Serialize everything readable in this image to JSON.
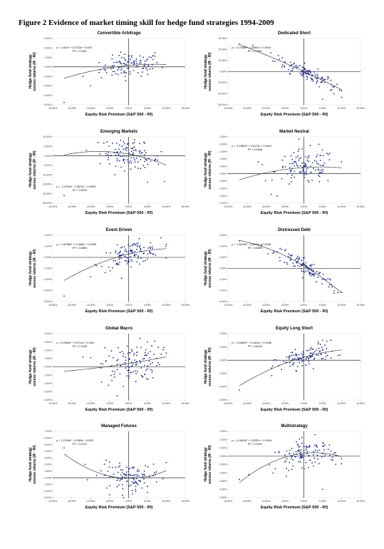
{
  "figure": {
    "title": "Figure 2 Evidence of market timing skill for hedge fund strategies 1994-2009"
  },
  "colors": {
    "points": "#1f2d8c",
    "line": "#000000",
    "curve": "#444444"
  },
  "chart_data": [
    {
      "type": "scatter",
      "title": "Convertible Arbitrage",
      "xlabel": "Equity Risk Premium (S&P 500 - Rf)",
      "ylabel": [
        "Hedge fund strategy",
        "excess returns (Rᴵ - Rf)"
      ],
      "xlim": [
        -0.2,
        0.15
      ],
      "ylim": [
        -0.08,
        0.06
      ],
      "xticks": [
        "-20.00%",
        "-15.00%",
        "-10.00%",
        "-5.00%",
        "0.00%",
        "5.00%",
        "10.00%",
        "15.00%"
      ],
      "yticks": [
        "6.00%",
        "4.00%",
        "2.00%",
        "0.00%",
        "-2.00%",
        "-4.00%",
        "-6.00%",
        "-8.00%"
      ],
      "equation": "y = -0.51x² + 0.0723x + 0.003",
      "r2": "R² = 0.2521",
      "fit": {
        "a": -0.51,
        "b": 0.0723,
        "c": 0.003
      },
      "cloud": {
        "xmin": -0.17,
        "xmax": 0.1,
        "noise": 0.012,
        "n": 110
      },
      "outliers": [
        [
          -0.17,
          -0.075
        ],
        [
          -0.1,
          -0.04
        ],
        [
          -0.12,
          -0.02
        ],
        [
          0.06,
          0.02
        ],
        [
          0.07,
          0.03
        ]
      ]
    },
    {
      "type": "scatter",
      "title": "Dedicated Short",
      "xlabel": "Equity Risk Premium (S&P 500 - Rf)",
      "ylabel": [
        "Hedge fund strategy",
        "excess returns (Rᴵ - Rf)"
      ],
      "xlim": [
        -0.2,
        0.15
      ],
      "ylim": [
        -0.3,
        0.3
      ],
      "xticks": [
        "-20.00%",
        "-15.00%",
        "-10.00%",
        "-5.00%",
        "0.00%",
        "5.00%",
        "10.00%",
        "15.00%"
      ],
      "yticks": [
        "30.00%",
        "20.00%",
        "10.00%",
        "0.00%",
        "-10.00%",
        "-20.00%",
        "-30.00%"
      ],
      "equation": "y = -0.7508x² - 1.5691x + 0.0019",
      "r2": "R² = 0.7967",
      "fit": {
        "a": -0.7508,
        "b": -1.5691,
        "c": 0.0019
      },
      "cloud": {
        "xmin": -0.17,
        "xmax": 0.1,
        "noise": 0.035,
        "n": 120
      },
      "outliers": [
        [
          -0.17,
          0.25
        ],
        [
          0.05,
          -0.25
        ],
        [
          0.08,
          -0.2
        ]
      ]
    },
    {
      "type": "scatter",
      "title": "Emerging Markets",
      "xlabel": "Equity Risk Premium (S&P 500 - Rf)",
      "ylabel": [
        "Hedge fund strategy",
        "excess returns (Rᴵ - Rf)"
      ],
      "xlim": [
        -0.2,
        0.15
      ],
      "ylim": [
        -0.25,
        0.1
      ],
      "xticks": [
        "-20.00%",
        "-15.00%",
        "-10.00%",
        "-5.00%",
        "0.00%",
        "5.00%",
        "10.00%",
        "15.00%"
      ],
      "yticks": [
        "10.00%",
        "5.00%",
        "0.00%",
        "-5.00%",
        "-10.00%",
        "-15.00%",
        "-20.00%",
        "-25.00%"
      ],
      "equation": "y = -2.2702x² - 0.3572x + 0.0093",
      "r2": "R² = 0.2675",
      "fit": {
        "a": -2.2702,
        "b": -0.3572,
        "c": 0.0093
      },
      "cloud": {
        "xmin": -0.17,
        "xmax": 0.1,
        "noise": 0.035,
        "n": 120
      },
      "outliers": [
        [
          -0.17,
          -0.21
        ],
        [
          0.05,
          -0.14
        ],
        [
          -0.08,
          0.07
        ]
      ]
    },
    {
      "type": "scatter",
      "title": "Market Neutral",
      "xlabel": "Equity Risk Premium (S&P 500 - Rf)",
      "ylabel": [
        "Hedge fund strategy",
        "excess returns (Rᴵ - Rf)"
      ],
      "xlim": [
        -0.2,
        0.15
      ],
      "ylim": [
        -0.02,
        0.025
      ],
      "xticks": [
        "-20.00%",
        "-15.00%",
        "-10.00%",
        "-5.00%",
        "0.00%",
        "5.00%",
        "10.00%",
        "15.00%"
      ],
      "yticks": [
        "2.50%",
        "2.00%",
        "1.50%",
        "1.00%",
        "0.50%",
        "0.00%",
        "-0.50%",
        "-1.00%",
        "-1.50%",
        "-2.00%"
      ],
      "equation": "y = -0.1862x² + 0.0172x + 0.0042",
      "r2": "R² = 0.0446",
      "fit": {
        "a": -0.1862,
        "b": 0.0172,
        "c": 0.0042
      },
      "cloud": {
        "xmin": -0.17,
        "xmax": 0.1,
        "noise": 0.006,
        "n": 120
      },
      "outliers": [
        [
          -0.07,
          -0.015
        ],
        [
          0.04,
          0.02
        ],
        [
          -0.12,
          0.008
        ]
      ]
    },
    {
      "type": "scatter",
      "title": "Event Driven",
      "xlabel": "Equity Risk Premium (S&P 500 - Rf)",
      "ylabel": [
        "Hedge fund strategy",
        "excess returns (Rᴵ - Rf)"
      ],
      "xlim": [
        -0.2,
        0.15
      ],
      "ylim": [
        -0.08,
        0.04
      ],
      "xticks": [
        "-20.00%",
        "-15.00%",
        "-10.00%",
        "-5.00%",
        "0.00%",
        "5.00%",
        "10.00%",
        "15.00%"
      ],
      "yticks": [
        "4.00%",
        "2.00%",
        "0.00%",
        "-2.00%",
        "-4.00%",
        "-6.00%",
        "-8.00%"
      ],
      "equation": "y = -0.6768x² + 0.1659x + 0.0059",
      "r2": "R² = 0.4663",
      "fit": {
        "a": -0.6768,
        "b": 0.1659,
        "c": 0.0059
      },
      "cloud": {
        "xmin": -0.17,
        "xmax": 0.1,
        "noise": 0.01,
        "n": 120
      },
      "outliers": [
        [
          -0.17,
          -0.07
        ],
        [
          -0.1,
          -0.035
        ]
      ]
    },
    {
      "type": "scatter",
      "title": "Distressed Debt",
      "xlabel": "Equity Risk Premium (S&P 500 - Rf)",
      "ylabel": [
        "Hedge fund strategy",
        "excess returns (Rᴵ - Rf)"
      ],
      "xlim": [
        -0.2,
        0.15
      ],
      "ylim": [
        -0.06,
        0.06
      ],
      "xticks": [
        "-20.00%",
        "-15.00%",
        "-10.00%",
        "-5.00%",
        "0.00%",
        "5.00%",
        "10.00%",
        "15.00%"
      ],
      "yticks": [
        "6.00%",
        "4.00%",
        "2.00%",
        "0.00%",
        "-2.00%",
        "-4.00%",
        "-6.00%"
      ],
      "equation": "y = -0.8135x² - 0.4075x + 0.0048",
      "r2": "R² = 0.6553",
      "fit": {
        "a": -0.8135,
        "b": -0.4075,
        "c": 0.0048
      },
      "cloud": {
        "xmin": -0.17,
        "xmax": 0.1,
        "noise": 0.008,
        "n": 120
      },
      "outliers": [
        [
          -0.17,
          0.05
        ],
        [
          0.08,
          -0.045
        ]
      ]
    },
    {
      "type": "scatter",
      "title": "Global Macro",
      "xlabel": "Equity Risk Premium (S&P 500 - Rf)",
      "ylabel": [
        "Hedge fund strategy",
        "excess returns (Rᴵ - Rf)"
      ],
      "xlim": [
        -0.2,
        0.15
      ],
      "ylim": [
        -0.04,
        0.04
      ],
      "xticks": [
        "-20.00%",
        "-15.00%",
        "-10.00%",
        "-5.00%",
        "0.00%",
        "5.00%",
        "10.00%",
        "15.00%"
      ],
      "yticks": [
        "4.00%",
        "3.00%",
        "2.00%",
        "1.00%",
        "0.00%",
        "-1.00%",
        "-2.00%",
        "-3.00%",
        "-4.00%"
      ],
      "equation": "y = 0.0965x² + 0.0712x + 0.004",
      "r2": "R² = 0.1016",
      "fit": {
        "a": 0.0965,
        "b": 0.0712,
        "c": 0.004
      },
      "cloud": {
        "xmin": -0.17,
        "xmax": 0.1,
        "noise": 0.012,
        "n": 120
      },
      "outliers": [
        [
          -0.03,
          -0.035
        ],
        [
          0.05,
          0.03
        ],
        [
          -0.12,
          0.012
        ]
      ]
    },
    {
      "type": "scatter",
      "title": "Equity Long Short",
      "xlabel": "Equity Risk Premium (S&P 500 - Rf)",
      "ylabel": [
        "Hedge fund strategy",
        "excess returns (Rᴵ - Rf)"
      ],
      "xlim": [
        -0.2,
        0.15
      ],
      "ylim": [
        -0.06,
        0.04
      ],
      "xticks": [
        "-20.00%",
        "-15.00%",
        "-10.00%",
        "-5.00%",
        "0.00%",
        "5.00%",
        "10.00%",
        "15.00%"
      ],
      "yticks": [
        "4.00%",
        "2.00%",
        "0.00%",
        "-2.00%",
        "-4.00%",
        "-6.00%"
      ],
      "equation": "y = -0.5362x² + 0.1624x + 0.0046",
      "r2": "R² = 0.6104",
      "fit": {
        "a": -0.5362,
        "b": 0.1624,
        "c": 0.0046
      },
      "cloud": {
        "xmin": -0.17,
        "xmax": 0.1,
        "noise": 0.008,
        "n": 120
      },
      "outliers": [
        [
          -0.17,
          -0.045
        ],
        [
          0.05,
          0.03
        ]
      ]
    },
    {
      "type": "scatter",
      "title": "Managed Futures",
      "xlabel": "Equity Risk Premium (S&P 500 - Rf)",
      "ylabel": [
        "Hedge fund strategy",
        "excess returns (Rᴵ - Rf)"
      ],
      "xlim": [
        -0.2,
        0.15
      ],
      "ylim": [
        -0.03,
        0.07
      ],
      "xticks": [
        "-20.00%",
        "-15.00%",
        "-10.00%",
        "-5.00%",
        "0.00%",
        "5.00%",
        "10.00%",
        "15.00%"
      ],
      "yticks": [
        "7.00%",
        "6.00%",
        "5.00%",
        "4.00%",
        "3.00%",
        "2.00%",
        "1.00%",
        "0.00%",
        "-1.00%",
        "-2.00%",
        "-3.00%"
      ],
      "equation": "y = 1.2228x² - 0.0069x - 0.0007",
      "r2": "R² = 0.2272",
      "fit": {
        "a": 1.2228,
        "b": -0.0069,
        "c": -0.0007
      },
      "cloud": {
        "xmin": -0.17,
        "xmax": 0.1,
        "noise": 0.01,
        "n": 120
      },
      "outliers": [
        [
          -0.17,
          0.045
        ],
        [
          0.05,
          -0.022
        ]
      ]
    },
    {
      "type": "scatter",
      "title": "Multistrategy",
      "xlabel": "Equity Risk Premium (S&P 500 - Rf)",
      "ylabel": [
        "Hedge fund strategy",
        "excess returns (Rᴵ - Rf)"
      ],
      "xlim": [
        -0.2,
        0.15
      ],
      "ylim": [
        -0.025,
        0.015
      ],
      "xticks": [
        "-20.00%",
        "-15.00%",
        "-10.00%",
        "-5.00%",
        "0.00%",
        "5.00%",
        "10.00%",
        "15.00%"
      ],
      "yticks": [
        "1.50%",
        "1.00%",
        "0.50%",
        "0.00%",
        "-0.50%",
        "-1.00%",
        "-1.50%",
        "-2.00%",
        "-2.50%"
      ],
      "equation": "y = -0.4623x² + 0.0257x + 0.0018",
      "r2": "R² = 0.2119",
      "fit": {
        "a": -0.4623,
        "b": 0.0257,
        "c": 0.0018
      },
      "cloud": {
        "xmin": -0.17,
        "xmax": 0.1,
        "noise": 0.004,
        "n": 120
      },
      "outliers": [
        [
          -0.17,
          -0.014
        ],
        [
          0.05,
          -0.02
        ],
        [
          0.03,
          0.013
        ]
      ]
    }
  ]
}
